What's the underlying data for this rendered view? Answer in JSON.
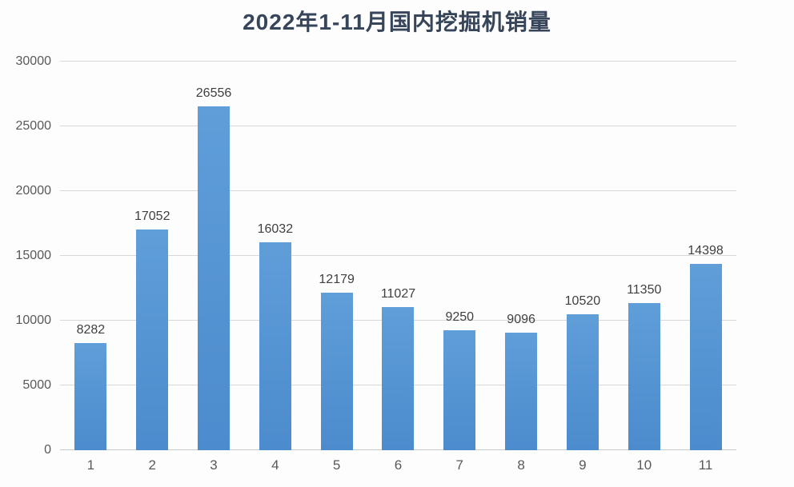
{
  "chart_data": {
    "type": "bar",
    "title": "2022年1-11月国内挖掘机销量",
    "categories": [
      "1",
      "2",
      "3",
      "4",
      "5",
      "6",
      "7",
      "8",
      "9",
      "10",
      "11"
    ],
    "values": [
      8282,
      17052,
      26556,
      16032,
      12179,
      11027,
      9250,
      9096,
      10520,
      11350,
      14398
    ],
    "xlabel": "",
    "ylabel": "",
    "ylim": [
      0,
      30000
    ],
    "yticks": [
      0,
      5000,
      10000,
      15000,
      20000,
      25000,
      30000
    ],
    "grid": true,
    "legend": false,
    "colors": {
      "bar_top": "#5f9ed9",
      "bar_bottom": "#4c8bcd",
      "gridline": "#d8d8d8",
      "axis_line": "#c6cbd0",
      "tick_label": "#595959",
      "value_label": "#3f3f3f",
      "title": "#36455a",
      "background": "#fdfdfd"
    }
  }
}
